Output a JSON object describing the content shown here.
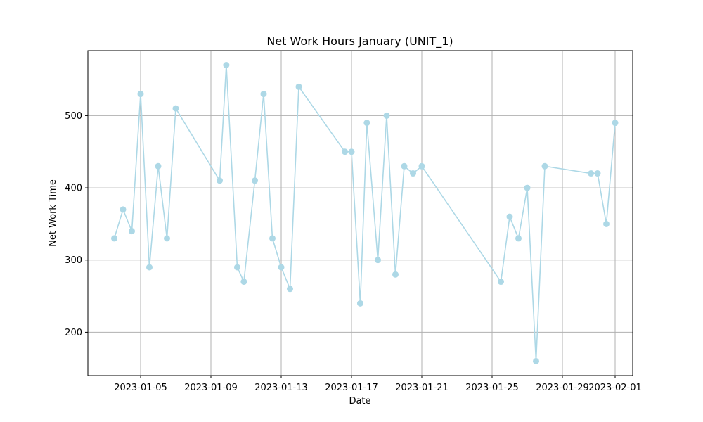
{
  "chart_data": {
    "type": "line",
    "title": "Net Work Hours January (UNIT_1)",
    "xlabel": "Date",
    "ylabel": "Net Work Time",
    "grid": true,
    "marker": "circle",
    "series_color": "#add8e6",
    "x_ticks": [
      "2023-01-05",
      "2023-01-09",
      "2023-01-13",
      "2023-01-17",
      "2023-01-21",
      "2023-01-25",
      "2023-01-29",
      "2023-02-01"
    ],
    "y_ticks": [
      200,
      300,
      400,
      500
    ],
    "x_range": [
      "2023-01-02",
      "2023-02-02"
    ],
    "ylim": [
      140,
      590
    ],
    "series": [
      {
        "points": [
          {
            "x": "2023-01-03 12:00",
            "y": 330
          },
          {
            "x": "2023-01-04 00:00",
            "y": 370
          },
          {
            "x": "2023-01-04 12:00",
            "y": 340
          },
          {
            "x": "2023-01-05 00:00",
            "y": 530
          },
          {
            "x": "2023-01-05 12:00",
            "y": 290
          },
          {
            "x": "2023-01-06 00:00",
            "y": 430
          },
          {
            "x": "2023-01-06 12:00",
            "y": 330
          },
          {
            "x": "2023-01-07 00:00",
            "y": 510
          },
          {
            "x": "2023-01-09 12:00",
            "y": 410
          },
          {
            "x": "2023-01-09 21:00",
            "y": 570
          },
          {
            "x": "2023-01-10 12:00",
            "y": 290
          },
          {
            "x": "2023-01-10 21:00",
            "y": 270
          },
          {
            "x": "2023-01-11 12:00",
            "y": 410
          },
          {
            "x": "2023-01-12 00:00",
            "y": 530
          },
          {
            "x": "2023-01-12 12:00",
            "y": 330
          },
          {
            "x": "2023-01-13 00:00",
            "y": 290
          },
          {
            "x": "2023-01-13 12:00",
            "y": 260
          },
          {
            "x": "2023-01-14 00:00",
            "y": 540
          },
          {
            "x": "2023-01-16 15:00",
            "y": 450
          },
          {
            "x": "2023-01-17 00:00",
            "y": 450
          },
          {
            "x": "2023-01-17 12:00",
            "y": 240
          },
          {
            "x": "2023-01-17 21:00",
            "y": 490
          },
          {
            "x": "2023-01-18 12:00",
            "y": 300
          },
          {
            "x": "2023-01-19 00:00",
            "y": 500
          },
          {
            "x": "2023-01-19 12:00",
            "y": 280
          },
          {
            "x": "2023-01-20 00:00",
            "y": 430
          },
          {
            "x": "2023-01-20 12:00",
            "y": 420
          },
          {
            "x": "2023-01-21 00:00",
            "y": 430
          },
          {
            "x": "2023-01-25 12:00",
            "y": 270
          },
          {
            "x": "2023-01-26 00:00",
            "y": 360
          },
          {
            "x": "2023-01-26 12:00",
            "y": 330
          },
          {
            "x": "2023-01-27 00:00",
            "y": 400
          },
          {
            "x": "2023-01-27 12:00",
            "y": 160
          },
          {
            "x": "2023-01-28 00:00",
            "y": 430
          },
          {
            "x": "2023-01-30 15:00",
            "y": 420
          },
          {
            "x": "2023-01-31 00:00",
            "y": 420
          },
          {
            "x": "2023-01-31 12:00",
            "y": 350
          },
          {
            "x": "2023-02-01 00:00",
            "y": 490
          }
        ]
      }
    ]
  }
}
